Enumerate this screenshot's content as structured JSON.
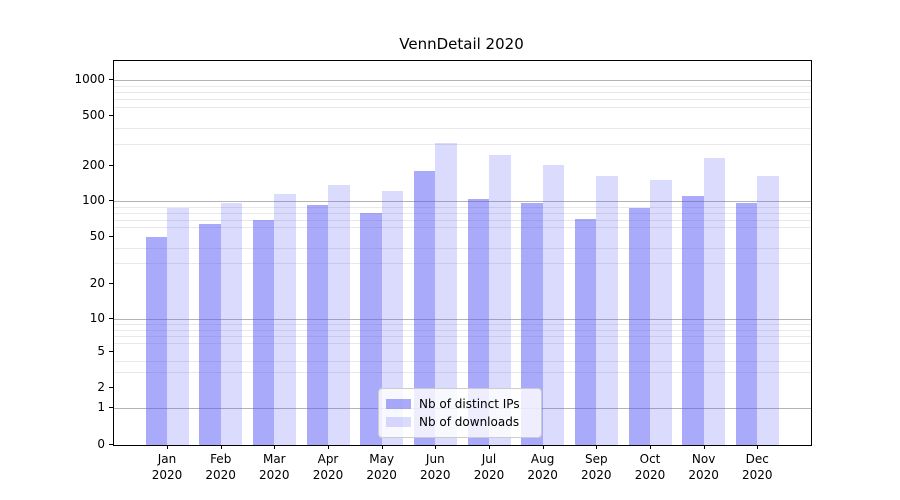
{
  "chart_data": {
    "type": "bar",
    "title": "VennDetail 2020",
    "categories": [
      "Jan 2020",
      "Feb 2020",
      "Mar 2020",
      "Apr 2020",
      "May 2020",
      "Jun 2020",
      "Jul 2020",
      "Aug 2020",
      "Sep 2020",
      "Oct 2020",
      "Nov 2020",
      "Dec 2020"
    ],
    "x_tick_months": [
      "Jan",
      "Feb",
      "Mar",
      "Apr",
      "May",
      "Jun",
      "Jul",
      "Aug",
      "Sep",
      "Oct",
      "Nov",
      "Dec"
    ],
    "x_tick_year": "2020",
    "series": [
      {
        "name": "Nb of distinct IPs",
        "color": "rgba(85,85,245,0.5)",
        "values": [
          50,
          64,
          69,
          93,
          80,
          182,
          104,
          97,
          71,
          87,
          112,
          97
        ]
      },
      {
        "name": "Nb of downloads",
        "color": "rgba(85,85,245,0.21)",
        "values": [
          87,
          97,
          116,
          139,
          123,
          308,
          245,
          204,
          165,
          153,
          230,
          164
        ]
      }
    ],
    "xlabel": "",
    "ylabel": "",
    "yscale": "symlog",
    "y_ticks": [
      0,
      1,
      2,
      5,
      10,
      20,
      50,
      100,
      200,
      500,
      1000
    ],
    "y_minor_gridlines": [
      3,
      4,
      6,
      7,
      8,
      9,
      30,
      40,
      60,
      70,
      80,
      90,
      300,
      400,
      600,
      700,
      800,
      900
    ],
    "y_major_gridlines": [
      1,
      10,
      100,
      1000
    ],
    "ylim": [
      0,
      1400
    ],
    "grid": "horizontal",
    "legend_position": "lower center",
    "colors": {
      "major_grid": "#b4b4b4",
      "minor_grid": "#e9e9e9",
      "spine": "#000000",
      "text": "#000000",
      "background": "#ffffff"
    }
  },
  "legend": {
    "items": [
      {
        "label": "Nb of distinct IPs"
      },
      {
        "label": "Nb of downloads"
      }
    ]
  }
}
